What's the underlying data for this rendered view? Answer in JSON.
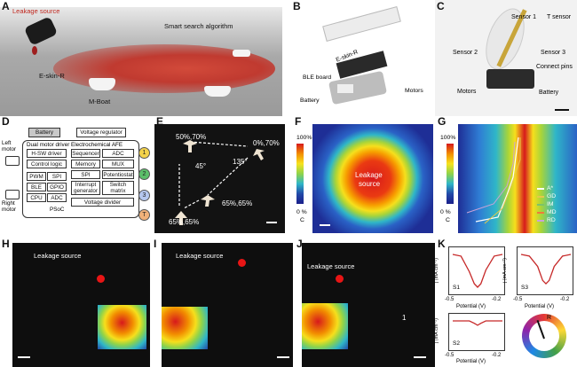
{
  "panels": {
    "A": {
      "label": "A",
      "leakage": "Leakage source",
      "algorithm": "Smart search algorithm",
      "eskin": "E-skin-R",
      "boat": "M-Boat"
    },
    "B": {
      "label": "B",
      "eskin": "E-skin-R",
      "ble": "BLE board",
      "battery": "Battery",
      "motors": "Motors"
    },
    "C": {
      "label": "C",
      "sensor1": "Sensor 1",
      "tsensor": "T sensor",
      "sensor2": "Sensor 2",
      "sensor3": "Sensor 3",
      "pins": "Connect pins",
      "motors": "Motors",
      "battery": "Battery"
    },
    "D": {
      "label": "D",
      "battery": "Battery",
      "regulator": "Voltage regulator",
      "dual_motor": "Dual motor driver",
      "afe": "Electrochemical AFE",
      "hsw": "H-SW driver",
      "control": "Control logic",
      "pwm": "PWM",
      "spi": "SPI",
      "ble": "BLE",
      "gpio": "GPIO",
      "cpu": "CPU",
      "adc": "ADC",
      "sequencer": "Sequencer",
      "adc2": "ADC",
      "memory": "Memory",
      "mux": "MUX",
      "spi2": "SPI",
      "potentiostat": "Potentiostat",
      "interrupt": "Interrupt generator",
      "switch": "Switch matrix",
      "divider": "Voltage divider",
      "psoc": "PSoC",
      "left_motor": "Left motor",
      "right_motor": "Right motor",
      "pins": [
        "1",
        "2",
        "3",
        "T"
      ]
    },
    "E": {
      "label": "E",
      "p1": "50%,70%",
      "p2": "0%,70%",
      "p3": "65%,65%",
      "p4": "65%,65%",
      "a1": "45°",
      "a2": "135°"
    },
    "F": {
      "label": "F",
      "top": "100%",
      "bottom": "0 %",
      "unit": "C",
      "leak1": "Leakage",
      "leak2": "source"
    },
    "G": {
      "label": "G",
      "top": "100%",
      "bottom": "0 %",
      "unit": "C",
      "legend": [
        {
          "name": "A*",
          "color": "#ffffff"
        },
        {
          "name": "GD",
          "color": "#e6c84a"
        },
        {
          "name": "IM",
          "color": "#7cc36a"
        },
        {
          "name": "MD",
          "color": "#f07a3a"
        },
        {
          "name": "RD",
          "color": "#c9a3d8"
        }
      ]
    },
    "H": {
      "label": "H",
      "leakage": "Leakage source"
    },
    "I": {
      "label": "I",
      "leakage": "Leakage source"
    },
    "J": {
      "label": "J",
      "leakage": "Leakage source",
      "num": "1"
    },
    "K": {
      "label": "K",
      "ylabel": "j (mA cm⁻²)",
      "xlabel": "Potential (V)",
      "plots": [
        {
          "name": "S1",
          "xmin": "-0.5",
          "xmax": "-0.2"
        },
        {
          "name": "S3",
          "xmin": "-0.5",
          "xmax": "-0.2"
        },
        {
          "name": "S2",
          "xmin": "-0.5",
          "xmax": "-0.2"
        }
      ],
      "wheel_label": "R"
    }
  },
  "chart_data": [
    {
      "type": "line",
      "title": "S1",
      "xlabel": "Potential (V)",
      "ylabel": "j (mA cm⁻²)",
      "xlim": [
        -0.5,
        -0.2
      ],
      "series": [
        {
          "x": [
            -0.5,
            -0.45,
            -0.4,
            -0.37,
            -0.35,
            -0.33,
            -0.3,
            -0.25,
            -0.2
          ],
          "y": [
            0,
            -0.05,
            -0.5,
            -0.85,
            -0.95,
            -0.85,
            -0.45,
            -0.05,
            0
          ]
        }
      ]
    },
    {
      "type": "line",
      "title": "S3",
      "xlabel": "Potential (V)",
      "ylabel": "j (mA cm⁻²)",
      "xlim": [
        -0.5,
        -0.2
      ],
      "series": [
        {
          "x": [
            -0.5,
            -0.45,
            -0.4,
            -0.37,
            -0.35,
            -0.33,
            -0.3,
            -0.25,
            -0.2
          ],
          "y": [
            0,
            -0.05,
            -0.35,
            -0.75,
            -0.85,
            -0.75,
            -0.35,
            -0.05,
            0
          ]
        }
      ]
    },
    {
      "type": "line",
      "title": "S2",
      "xlabel": "Potential (V)",
      "ylabel": "j (mA cm⁻²)",
      "xlim": [
        -0.5,
        -0.2
      ],
      "series": [
        {
          "x": [
            -0.5,
            -0.4,
            -0.37,
            -0.35,
            -0.33,
            -0.3,
            -0.2
          ],
          "y": [
            0,
            0,
            -0.1,
            -0.18,
            -0.1,
            0,
            0
          ]
        }
      ]
    }
  ]
}
